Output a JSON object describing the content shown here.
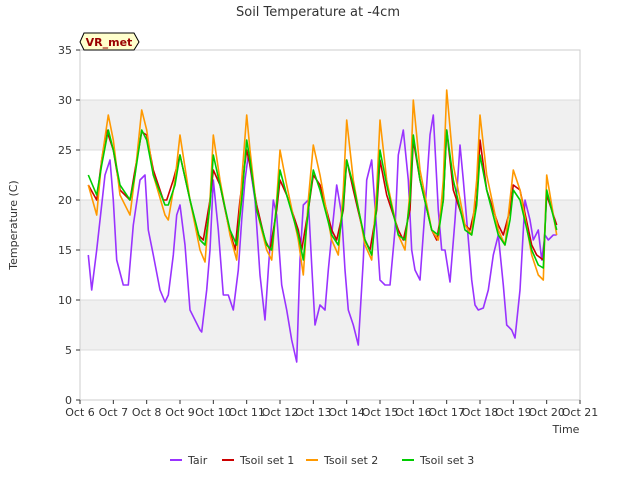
{
  "chart_data": {
    "type": "line",
    "title": "Soil Temperature at -4cm",
    "xlabel": "Time",
    "ylabel": "Temperature (C)",
    "badge": "VR_met",
    "ylim": [
      0,
      35
    ],
    "yticks": [
      0,
      5,
      10,
      15,
      20,
      25,
      30,
      35
    ],
    "xlim": [
      0,
      15
    ],
    "xticks": [
      0,
      1,
      2,
      3,
      4,
      5,
      6,
      7,
      8,
      9,
      10,
      11,
      12,
      13,
      14,
      15
    ],
    "xtick_labels": [
      "Oct 6",
      "Oct 7",
      "Oct 8",
      "Oct 9",
      "Oct 10",
      "Oct 11",
      "Oct 12",
      "Oct 13",
      "Oct 14",
      "Oct 15",
      "Oct 16",
      "Oct 17",
      "Oct 18",
      "Oct 19",
      "Oct 20",
      "Oct 21"
    ],
    "legend_position": "bottom",
    "grid": "horizontal bands",
    "series": [
      {
        "name": "Tair",
        "color": "#9933ff",
        "x": [
          0.25,
          0.35,
          0.5,
          0.75,
          0.9,
          1.0,
          1.1,
          1.3,
          1.45,
          1.6,
          1.8,
          1.95,
          2.05,
          2.2,
          2.4,
          2.55,
          2.65,
          2.8,
          2.9,
          3.0,
          3.15,
          3.3,
          3.6,
          3.65,
          3.8,
          3.9,
          4.0,
          4.15,
          4.3,
          4.45,
          4.6,
          4.75,
          4.85,
          4.95,
          5.05,
          5.25,
          5.4,
          5.55,
          5.65,
          5.8,
          5.9,
          6.05,
          6.2,
          6.35,
          6.5,
          6.6,
          6.7,
          6.85,
          6.95,
          7.05,
          7.2,
          7.35,
          7.45,
          7.55,
          7.7,
          7.85,
          7.95,
          8.05,
          8.2,
          8.35,
          8.5,
          8.6,
          8.75,
          8.9,
          9.0,
          9.15,
          9.3,
          9.45,
          9.55,
          9.7,
          9.85,
          9.95,
          10.05,
          10.2,
          10.35,
          10.5,
          10.6,
          10.75,
          10.85,
          10.95,
          11.1,
          11.25,
          11.4,
          11.5,
          11.6,
          11.75,
          11.85,
          11.95,
          12.1,
          12.25,
          12.4,
          12.55,
          12.7,
          12.8,
          12.95,
          13.05,
          13.2,
          13.35,
          13.5,
          13.6,
          13.75,
          13.85,
          13.95,
          14.05,
          14.2,
          14.3
        ],
        "y": [
          14.5,
          11.0,
          15.0,
          22.5,
          24.0,
          20.0,
          14.0,
          11.5,
          11.5,
          17.5,
          22.0,
          22.5,
          17.0,
          14.5,
          11.0,
          9.8,
          10.5,
          14.5,
          18.5,
          19.5,
          15.5,
          9.0,
          7.0,
          6.8,
          11.0,
          15.0,
          22.0,
          17.0,
          10.5,
          10.5,
          9.0,
          13.0,
          18.0,
          22.0,
          24.5,
          20.0,
          12.5,
          8.0,
          13.0,
          20.0,
          18.5,
          11.5,
          9.0,
          6.0,
          3.8,
          14.0,
          19.5,
          20.0,
          13.5,
          7.5,
          9.5,
          9.0,
          13.0,
          16.5,
          21.5,
          18.5,
          13.0,
          9.0,
          7.5,
          5.5,
          14.0,
          22.0,
          24.0,
          17.0,
          12.0,
          11.5,
          11.5,
          17.0,
          24.5,
          27.0,
          22.0,
          15.0,
          13.0,
          12.0,
          19.0,
          26.5,
          28.5,
          19.0,
          15.0,
          15.0,
          11.8,
          18.0,
          25.5,
          22.0,
          18.0,
          12.0,
          9.5,
          9.0,
          9.2,
          11.0,
          14.5,
          16.5,
          11.5,
          7.5,
          7.0,
          6.2,
          11.0,
          20.0,
          18.0,
          16.0,
          17.0,
          14.0,
          16.5,
          16.0,
          16.5,
          16.5
        ]
      },
      {
        "name": "Tsoil set 1",
        "color": "#cc0000",
        "x": [
          0.25,
          0.5,
          0.65,
          0.8,
          1.0,
          1.2,
          1.5,
          1.65,
          1.85,
          2.0,
          2.2,
          2.5,
          2.6,
          2.8,
          3.0,
          3.3,
          3.55,
          3.7,
          3.9,
          4.0,
          4.2,
          4.45,
          4.65,
          4.8,
          5.0,
          5.1,
          5.3,
          5.55,
          5.7,
          5.9,
          6.0,
          6.2,
          6.55,
          6.65,
          6.85,
          7.0,
          7.2,
          7.55,
          7.7,
          7.9,
          8.0,
          8.2,
          8.55,
          8.7,
          8.9,
          9.0,
          9.2,
          9.55,
          9.7,
          9.9,
          10.0,
          10.2,
          10.55,
          10.7,
          10.9,
          11.0,
          11.2,
          11.55,
          11.7,
          11.9,
          12.0,
          12.2,
          12.55,
          12.7,
          12.9,
          13.0,
          13.2,
          13.55,
          13.7,
          13.9,
          14.0,
          14.3
        ],
        "y": [
          21.5,
          20.0,
          24.0,
          27.0,
          25.0,
          21.0,
          20.0,
          23.0,
          26.8,
          26.5,
          23.0,
          20.0,
          20.0,
          22.0,
          24.5,
          20.0,
          16.5,
          16.0,
          20.0,
          23.0,
          21.5,
          17.5,
          15.0,
          20.0,
          25.0,
          23.5,
          19.5,
          16.0,
          15.0,
          19.0,
          22.0,
          20.5,
          17.0,
          15.0,
          19.0,
          22.5,
          21.5,
          17.0,
          16.0,
          19.0,
          24.0,
          21.0,
          16.0,
          15.0,
          19.0,
          24.0,
          20.5,
          17.0,
          16.0,
          19.0,
          26.0,
          22.0,
          17.0,
          16.0,
          20.0,
          27.0,
          21.0,
          17.5,
          17.0,
          20.0,
          26.0,
          21.0,
          17.5,
          16.5,
          19.0,
          21.5,
          21.0,
          15.5,
          14.5,
          14.0,
          20.5,
          17.5
        ]
      },
      {
        "name": "Tsoil set 2",
        "color": "#ff9900",
        "x": [
          0.25,
          0.5,
          0.65,
          0.85,
          1.0,
          1.2,
          1.5,
          1.65,
          1.85,
          2.0,
          2.2,
          2.55,
          2.65,
          2.85,
          3.0,
          3.3,
          3.6,
          3.75,
          3.9,
          4.0,
          4.2,
          4.5,
          4.7,
          4.85,
          5.0,
          5.1,
          5.3,
          5.6,
          5.75,
          5.9,
          6.0,
          6.2,
          6.55,
          6.7,
          6.85,
          7.0,
          7.2,
          7.55,
          7.75,
          7.9,
          8.0,
          8.2,
          8.55,
          8.75,
          8.9,
          9.0,
          9.2,
          9.55,
          9.75,
          9.9,
          10.0,
          10.2,
          10.55,
          10.75,
          10.9,
          11.0,
          11.2,
          11.55,
          11.75,
          11.9,
          12.0,
          12.2,
          12.55,
          12.75,
          12.9,
          13.0,
          13.2,
          13.55,
          13.75,
          13.9,
          14.0,
          14.3
        ],
        "y": [
          21.5,
          18.5,
          24.0,
          28.5,
          26.0,
          20.5,
          18.5,
          22.5,
          29.0,
          27.0,
          22.5,
          18.5,
          18.0,
          22.0,
          26.5,
          20.0,
          15.0,
          13.8,
          20.0,
          26.5,
          22.0,
          16.5,
          14.0,
          22.0,
          28.5,
          25.0,
          19.0,
          15.0,
          14.0,
          20.0,
          25.0,
          21.5,
          16.0,
          12.5,
          20.0,
          25.5,
          22.5,
          16.0,
          14.5,
          21.0,
          28.0,
          22.0,
          15.5,
          14.0,
          21.0,
          28.0,
          22.0,
          16.5,
          15.0,
          21.0,
          30.0,
          23.0,
          17.0,
          16.0,
          22.0,
          31.0,
          23.5,
          17.5,
          16.5,
          22.0,
          28.5,
          22.5,
          17.0,
          15.5,
          20.0,
          23.0,
          21.0,
          14.5,
          12.5,
          12.0,
          22.5,
          16.5
        ]
      },
      {
        "name": "Tsoil set 3",
        "color": "#00cc00",
        "x": [
          0.25,
          0.5,
          0.65,
          0.85,
          1.0,
          1.2,
          1.5,
          1.65,
          1.85,
          2.0,
          2.2,
          2.55,
          2.65,
          2.85,
          3.0,
          3.3,
          3.6,
          3.75,
          3.9,
          4.0,
          4.2,
          4.5,
          4.7,
          4.85,
          5.0,
          5.1,
          5.3,
          5.6,
          5.75,
          5.9,
          6.0,
          6.2,
          6.55,
          6.7,
          6.85,
          7.0,
          7.2,
          7.55,
          7.75,
          7.9,
          8.0,
          8.2,
          8.55,
          8.75,
          8.9,
          9.0,
          9.2,
          9.55,
          9.75,
          9.9,
          10.0,
          10.2,
          10.55,
          10.75,
          10.9,
          11.0,
          11.2,
          11.55,
          11.75,
          11.9,
          12.0,
          12.2,
          12.55,
          12.75,
          12.9,
          13.0,
          13.2,
          13.55,
          13.75,
          13.9,
          14.0,
          14.3
        ],
        "y": [
          22.5,
          20.5,
          23.5,
          27.0,
          25.0,
          21.5,
          20.0,
          22.5,
          27.0,
          26.0,
          22.5,
          19.5,
          19.5,
          21.5,
          24.5,
          20.0,
          16.0,
          15.5,
          19.5,
          24.5,
          21.5,
          17.0,
          15.5,
          20.0,
          26.0,
          24.0,
          19.0,
          15.5,
          15.0,
          19.5,
          23.0,
          20.5,
          16.5,
          14.0,
          19.0,
          23.0,
          21.0,
          16.5,
          15.5,
          19.5,
          24.0,
          21.5,
          16.0,
          14.5,
          19.5,
          25.0,
          21.5,
          16.5,
          16.0,
          20.0,
          26.5,
          22.0,
          17.0,
          16.5,
          20.0,
          27.0,
          22.0,
          17.0,
          16.5,
          19.5,
          24.5,
          21.0,
          16.5,
          15.5,
          18.0,
          21.0,
          20.0,
          15.0,
          13.5,
          13.2,
          21.0,
          17.0
        ]
      }
    ]
  }
}
